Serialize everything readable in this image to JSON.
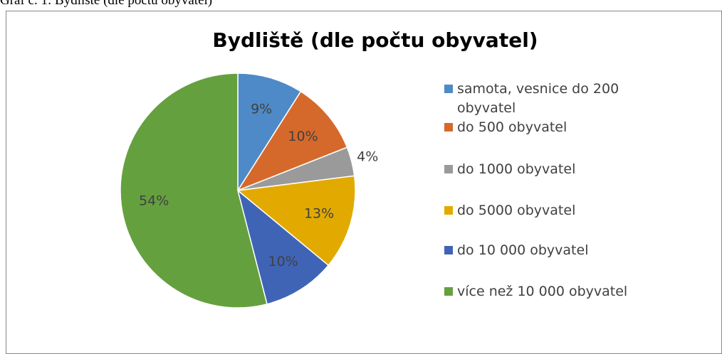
{
  "caption": "Graf č. 1: Bydliště (dle počtu obyvatel)",
  "chart_data": {
    "type": "pie",
    "title": "Bydliště (dle počtu obyvatel)",
    "categories": [
      "samota, vesnice do 200 obyvatel",
      "do 500 obyvatel",
      "do 1000 obyvatel",
      "do 5000 obyvatel",
      "do 10 000 obyvatel",
      "více než 10 000 obyvatel"
    ],
    "values": [
      9,
      10,
      4,
      13,
      10,
      54
    ],
    "value_labels": [
      "9%",
      "10%",
      "4%",
      "13%",
      "10%",
      "54%"
    ],
    "colors": [
      "#4e8ac8",
      "#d5692b",
      "#9a9a9a",
      "#e2aa00",
      "#3f64b6",
      "#65a03f"
    ],
    "legend": "right"
  }
}
